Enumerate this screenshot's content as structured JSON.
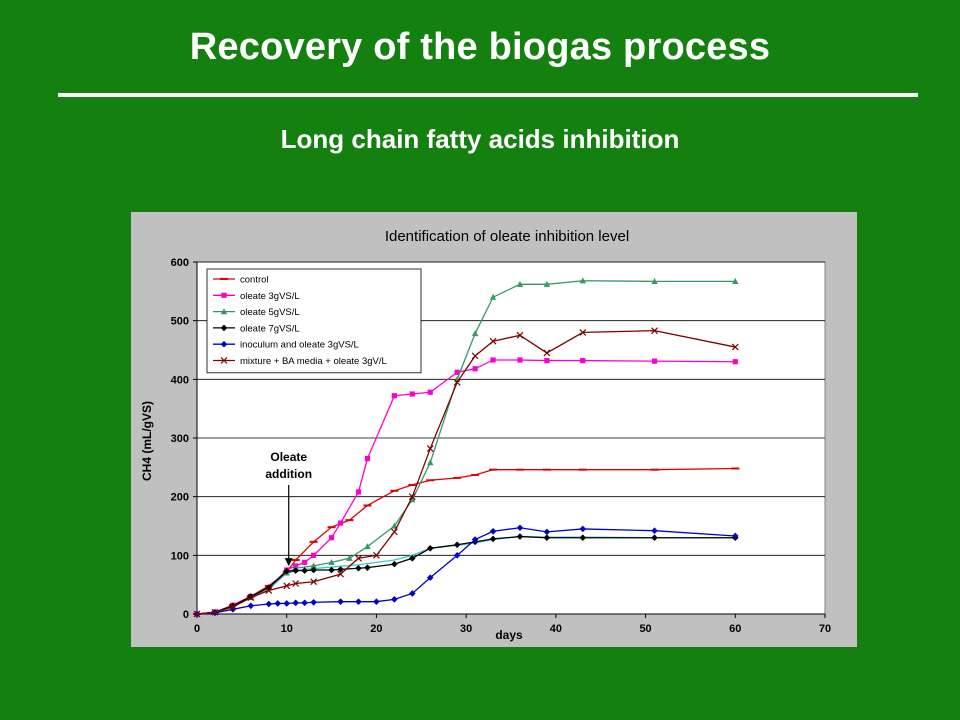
{
  "slide": {
    "title": "Recovery of the biogas process",
    "subtitle": "Long chain fatty acids inhibition"
  },
  "chart_data": {
    "type": "line",
    "title": "Identification of oleate inhibition level",
    "xlabel": "days",
    "ylabel": "CH4 (mL/gVS)",
    "xlim": [
      0,
      70
    ],
    "ylim": [
      0,
      600
    ],
    "x_ticks": [
      0,
      10,
      20,
      30,
      40,
      50,
      60,
      70
    ],
    "y_ticks": [
      0,
      100,
      200,
      300,
      400,
      500,
      600
    ],
    "grid": "horizontal",
    "legend_position": "top-left",
    "annotation": {
      "lines": [
        "Oleate",
        "addition"
      ],
      "x": 10,
      "y": 80
    },
    "series": [
      {
        "name": "control",
        "color": "#e00000",
        "marker": "dash",
        "x": [
          0,
          2,
          4,
          6,
          8,
          10,
          11,
          13,
          15,
          17,
          19,
          22,
          24,
          26,
          29,
          31,
          33,
          36,
          39,
          43,
          51,
          60
        ],
        "y": [
          0,
          3,
          15,
          30,
          48,
          72,
          92,
          123,
          148,
          160,
          185,
          210,
          220,
          228,
          232,
          237,
          246,
          246,
          246,
          246,
          246,
          248
        ]
      },
      {
        "name": "oleate 3gVS/L",
        "color": "#ff00cc",
        "marker": "square",
        "x": [
          0,
          2,
          4,
          6,
          8,
          10,
          11,
          12,
          13,
          15,
          16,
          18,
          19,
          22,
          24,
          26,
          29,
          31,
          33,
          36,
          39,
          43,
          51,
          60
        ],
        "y": [
          0,
          3,
          15,
          30,
          45,
          75,
          82,
          88,
          100,
          130,
          155,
          208,
          265,
          372,
          375,
          378,
          412,
          418,
          433,
          433,
          432,
          432,
          431,
          430
        ]
      },
      {
        "name": "oleate 5gVS/L",
        "color": "#339966",
        "marker": "triangle",
        "x": [
          0,
          2,
          4,
          6,
          8,
          10,
          11,
          13,
          15,
          17,
          19,
          22,
          24,
          26,
          29,
          31,
          33,
          36,
          39,
          43,
          51,
          60
        ],
        "y": [
          0,
          3,
          14,
          28,
          45,
          70,
          78,
          82,
          88,
          95,
          115,
          150,
          195,
          258,
          400,
          478,
          540,
          562,
          562,
          568,
          567,
          567
        ]
      },
      {
        "name": "oleate 7gVS/L",
        "color": "#000000",
        "marker": "diamond",
        "x": [
          0,
          2,
          4,
          6,
          8,
          10,
          11,
          12,
          13,
          15,
          16,
          18,
          19,
          22,
          24,
          26,
          29,
          31,
          33,
          36,
          39,
          43,
          51,
          60
        ],
        "y": [
          0,
          3,
          14,
          30,
          45,
          73,
          74,
          74,
          75,
          75,
          76,
          78,
          79,
          85,
          95,
          112,
          118,
          123,
          128,
          132,
          130,
          130,
          130,
          130
        ]
      },
      {
        "name": "inoculum and oleate 3gVS/L",
        "color": "#0000cc",
        "marker": "diamond",
        "x": [
          0,
          2,
          4,
          6,
          8,
          9,
          10,
          11,
          12,
          13,
          16,
          18,
          20,
          22,
          24,
          26,
          29,
          31,
          33,
          36,
          39,
          43,
          51,
          60
        ],
        "y": [
          0,
          2,
          8,
          14,
          17,
          18,
          18,
          19,
          19,
          20,
          21,
          21,
          21,
          25,
          35,
          62,
          100,
          127,
          141,
          147,
          140,
          145,
          142,
          133
        ]
      },
      {
        "name": "mixture + BA media + oleate 3gV/L",
        "color": "#800000",
        "marker": "x",
        "x": [
          0,
          2,
          4,
          6,
          8,
          10,
          11,
          13,
          16,
          18,
          20,
          22,
          24,
          26,
          29,
          31,
          33,
          36,
          39,
          43,
          51,
          60
        ],
        "y": [
          0,
          3,
          12,
          28,
          40,
          48,
          52,
          55,
          68,
          95,
          100,
          140,
          200,
          282,
          395,
          440,
          465,
          475,
          445,
          480,
          483,
          455
        ]
      }
    ],
    "extra_series": {
      "name": "",
      "color": "#33cccc",
      "marker": "none",
      "x": [
        0,
        2,
        4,
        6,
        8,
        10,
        12,
        15,
        18,
        20,
        22,
        24,
        26,
        29,
        31,
        33,
        36,
        39,
        43,
        51,
        60
      ],
      "y": [
        0,
        3,
        13,
        27,
        42,
        70,
        76,
        80,
        84,
        88,
        92,
        100,
        112,
        117,
        121,
        127,
        132,
        131,
        131,
        130,
        130
      ]
    }
  }
}
